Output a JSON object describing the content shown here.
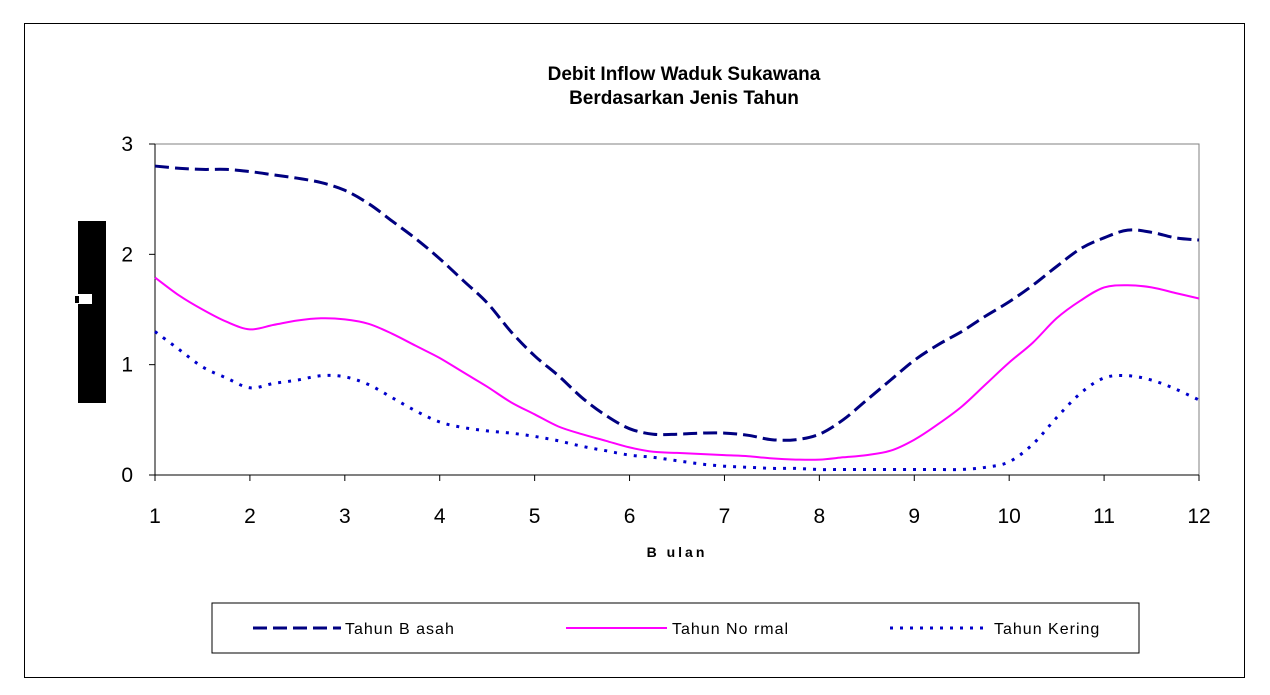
{
  "chart_data": {
    "type": "line",
    "title": [
      "Debit Inflow Waduk Sukawana",
      "Berdasarkan Jenis Tahun"
    ],
    "xlabel": "B ulan",
    "ylabel": "",
    "xlim": [
      1,
      12
    ],
    "ylim": [
      0,
      3
    ],
    "xticks": [
      "1",
      "2",
      "3",
      "4",
      "5",
      "6",
      "7",
      "8",
      "9",
      "10",
      "11",
      "12"
    ],
    "yticks": [
      "0",
      "1",
      "2",
      "3"
    ],
    "grid": false,
    "legend_position": "bottom",
    "x": [
      1,
      1.25,
      1.5,
      1.75,
      2,
      2.25,
      2.5,
      2.75,
      3,
      3.25,
      3.5,
      3.75,
      4,
      4.25,
      4.5,
      4.75,
      5,
      5.25,
      5.5,
      5.75,
      6,
      6.25,
      6.5,
      6.75,
      7,
      7.25,
      7.5,
      7.75,
      8,
      8.25,
      8.5,
      8.75,
      9,
      9.25,
      9.5,
      9.75,
      10,
      10.25,
      10.5,
      10.75,
      11,
      11.25,
      11.5,
      11.75,
      12
    ],
    "series": [
      {
        "name": "Tahun B asah",
        "color": "#000080",
        "dash": "dashed",
        "values": [
          2.8,
          2.78,
          2.77,
          2.77,
          2.75,
          2.72,
          2.69,
          2.65,
          2.58,
          2.46,
          2.3,
          2.14,
          1.96,
          1.76,
          1.56,
          1.3,
          1.08,
          0.9,
          0.7,
          0.54,
          0.42,
          0.37,
          0.37,
          0.38,
          0.38,
          0.36,
          0.32,
          0.32,
          0.37,
          0.5,
          0.68,
          0.86,
          1.04,
          1.18,
          1.3,
          1.44,
          1.57,
          1.72,
          1.89,
          2.05,
          2.15,
          2.22,
          2.2,
          2.15,
          2.13
        ]
      },
      {
        "name": "Tahun No rmal",
        "color": "#ff00ff",
        "dash": "solid",
        "values": [
          1.79,
          1.63,
          1.5,
          1.39,
          1.32,
          1.36,
          1.4,
          1.42,
          1.41,
          1.37,
          1.28,
          1.17,
          1.06,
          0.93,
          0.8,
          0.66,
          0.55,
          0.44,
          0.37,
          0.31,
          0.25,
          0.21,
          0.2,
          0.19,
          0.18,
          0.17,
          0.15,
          0.14,
          0.14,
          0.16,
          0.18,
          0.22,
          0.32,
          0.46,
          0.62,
          0.82,
          1.02,
          1.2,
          1.42,
          1.58,
          1.7,
          1.72,
          1.7,
          1.65,
          1.6
        ]
      },
      {
        "name": "Tahun Kering",
        "color": "#0000cc",
        "dash": "dotted",
        "values": [
          1.3,
          1.14,
          0.98,
          0.88,
          0.79,
          0.83,
          0.86,
          0.9,
          0.89,
          0.82,
          0.7,
          0.58,
          0.48,
          0.43,
          0.4,
          0.38,
          0.35,
          0.31,
          0.26,
          0.22,
          0.18,
          0.16,
          0.13,
          0.1,
          0.08,
          0.07,
          0.06,
          0.06,
          0.05,
          0.05,
          0.05,
          0.05,
          0.05,
          0.05,
          0.05,
          0.07,
          0.12,
          0.28,
          0.52,
          0.74,
          0.88,
          0.9,
          0.86,
          0.78,
          0.68
        ]
      }
    ]
  }
}
